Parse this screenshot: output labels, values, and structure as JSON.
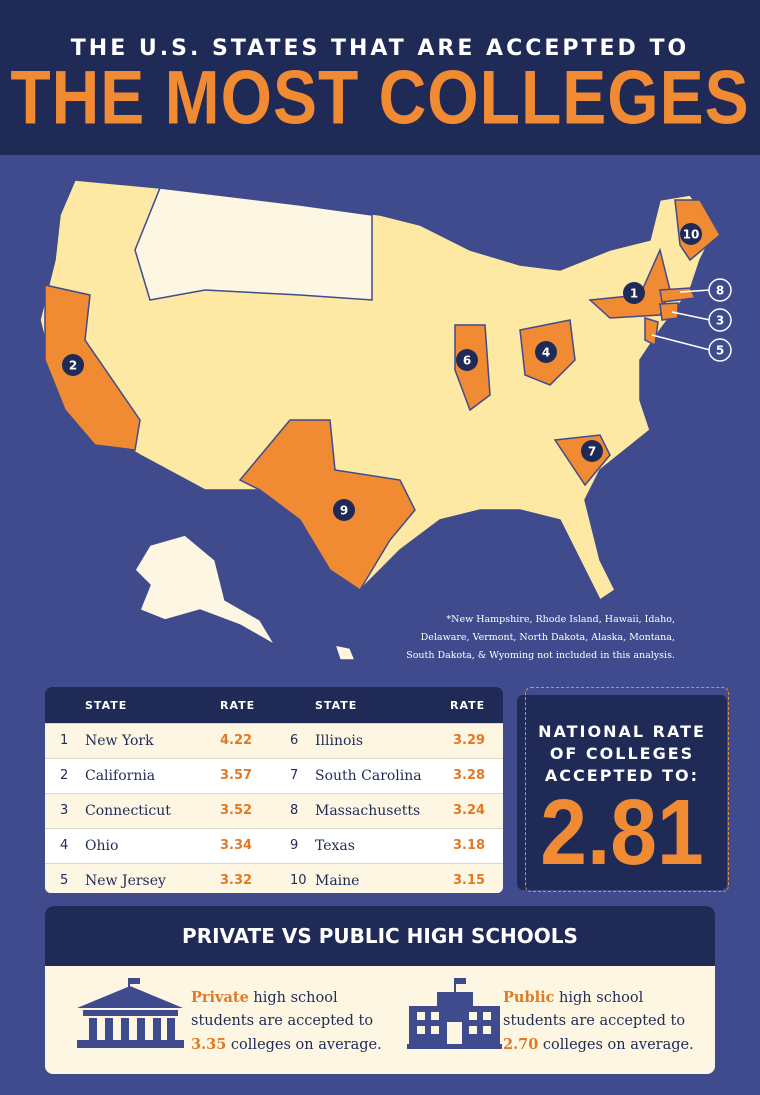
{
  "header": {
    "line1_pre": "THE U.S. STATES THAT ARE",
    "line1_em": "ACCEPTED",
    "line1_post": "TO",
    "title": "THE MOST COLLEGES"
  },
  "map": {
    "markers": [
      1,
      2,
      3,
      4,
      5,
      6,
      7,
      8,
      9,
      10
    ],
    "footnote": [
      "*New Hampshire, Rhode Island, Hawaii, Idaho,",
      "Delaware, Vermont, North Dakota, Alaska, Montana,",
      "South Dakota, & Wyoming not included in this analysis."
    ]
  },
  "table": {
    "headers": [
      "STATE",
      "RATE",
      "STATE",
      "RATE"
    ],
    "rows": [
      {
        "rank": 1,
        "state": "New York",
        "rate": 4.22
      },
      {
        "rank": 2,
        "state": "California",
        "rate": 3.57
      },
      {
        "rank": 3,
        "state": "Connecticut",
        "rate": 3.52
      },
      {
        "rank": 4,
        "state": "Ohio",
        "rate": 3.34
      },
      {
        "rank": 5,
        "state": "New Jersey",
        "rate": 3.32
      },
      {
        "rank": 6,
        "state": "Illinois",
        "rate": 3.29
      },
      {
        "rank": 7,
        "state": "South Carolina",
        "rate": 3.28
      },
      {
        "rank": 8,
        "state": "Massachusetts",
        "rate": 3.24
      },
      {
        "rank": 9,
        "state": "Texas",
        "rate": 3.18
      },
      {
        "rank": 10,
        "state": "Maine",
        "rate": 3.15
      }
    ]
  },
  "national": {
    "label": [
      "NATIONAL RATE",
      "OF COLLEGES",
      "ACCEPTED TO:"
    ],
    "value": 2.81
  },
  "schools": {
    "title": "PRIVATE VS PUBLIC HIGH SCHOOLS",
    "private": {
      "em": "Private",
      "line1": " high school",
      "line2": "students are accepted to",
      "value": "3.35",
      "line3": " colleges on average."
    },
    "public": {
      "em": "Public",
      "line1": " high school",
      "line2": "students are accepted to",
      "value": "2.70",
      "line3": " colleges on average."
    }
  }
}
